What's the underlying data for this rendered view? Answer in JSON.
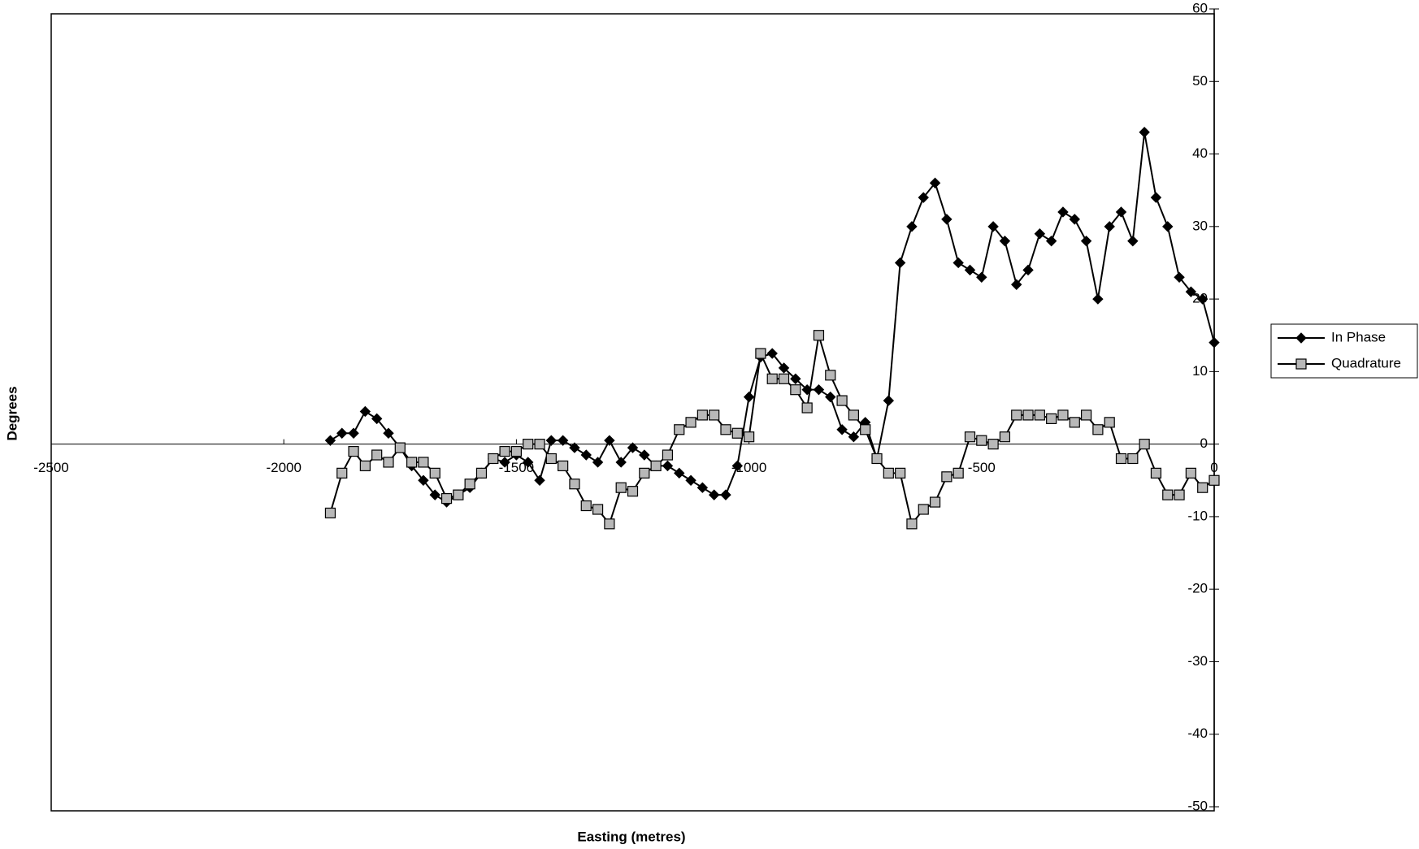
{
  "chart_data": {
    "type": "line",
    "x_label": "Easting (metres)",
    "y_label": "Degrees",
    "x": [
      -1900,
      -1875,
      -1850,
      -1825,
      -1800,
      -1775,
      -1750,
      -1725,
      -1700,
      -1675,
      -1650,
      -1625,
      -1600,
      -1575,
      -1550,
      -1525,
      -1500,
      -1475,
      -1450,
      -1425,
      -1400,
      -1375,
      -1350,
      -1325,
      -1300,
      -1275,
      -1250,
      -1225,
      -1200,
      -1175,
      -1150,
      -1125,
      -1100,
      -1075,
      -1050,
      -1025,
      -1000,
      -975,
      -950,
      -925,
      -900,
      -875,
      -850,
      -825,
      -800,
      -775,
      -750,
      -725,
      -700,
      -675,
      -650,
      -625,
      -600,
      -575,
      -550,
      -525,
      -500,
      -475,
      -450,
      -425,
      -400,
      -375,
      -350,
      -325,
      -300,
      -275,
      -250,
      -225,
      -200,
      -175,
      -150,
      -125,
      -100,
      -75,
      -50,
      -25,
      0
    ],
    "series": [
      {
        "name": "In Phase",
        "color": "#000000",
        "marker": "diamond",
        "marker_fill": "#000000",
        "values": [
          0.5,
          1.5,
          1.5,
          4.5,
          3.5,
          1.5,
          -0.5,
          -3,
          -5,
          -7,
          -8,
          -7,
          -6,
          -4,
          -2,
          -2.5,
          -1.5,
          -2.5,
          -5,
          0.5,
          0.5,
          -0.5,
          -1.5,
          -2.5,
          0.5,
          -2.5,
          -0.5,
          -1.5,
          -3,
          -3,
          -4,
          -5,
          -6,
          -7,
          -7,
          -3,
          6.5,
          12,
          12.5,
          10.5,
          9,
          7.5,
          7.5,
          6.5,
          2,
          1,
          3,
          -2,
          6,
          25,
          30,
          34,
          36,
          31,
          25,
          24,
          23,
          30,
          28,
          22,
          24,
          29,
          28,
          32,
          31,
          28,
          20,
          30,
          32,
          28,
          43,
          34,
          30,
          23,
          21,
          20,
          14
        ]
      },
      {
        "name": "Quadrature",
        "color": "#000000",
        "marker": "square",
        "marker_fill": "#b8b8b8",
        "values": [
          -9.5,
          -4,
          -1,
          -3,
          -1.5,
          -2.5,
          -0.5,
          -2.5,
          -2.5,
          -4,
          -7.5,
          -7,
          -5.5,
          -4,
          -2,
          -1,
          -1,
          0,
          0,
          -2,
          -3,
          -5.5,
          -8.5,
          -9,
          -11,
          -6,
          -6.5,
          -4,
          -3,
          -1.5,
          2,
          3,
          4,
          4,
          2,
          1.5,
          1,
          12.5,
          9,
          9,
          7.5,
          5,
          15,
          9.5,
          6,
          4,
          2,
          -2,
          -4,
          -4,
          -11,
          -9,
          -8,
          -4.5,
          -4,
          1,
          0.5,
          0,
          1,
          4,
          4,
          4,
          3.5,
          4,
          3,
          4,
          2,
          3,
          -2,
          -2,
          0,
          -4,
          -7,
          -7,
          -4,
          -6,
          -5
        ]
      }
    ],
    "xlim": [
      -2500,
      0
    ],
    "xticks": [
      -2500,
      -2000,
      -1500,
      -1000,
      -500,
      0
    ],
    "ylim": [
      -50,
      60
    ],
    "yticks": [
      -50,
      -40,
      -30,
      -20,
      -10,
      0,
      10,
      20,
      30,
      40,
      50,
      60
    ],
    "legend": "right"
  }
}
